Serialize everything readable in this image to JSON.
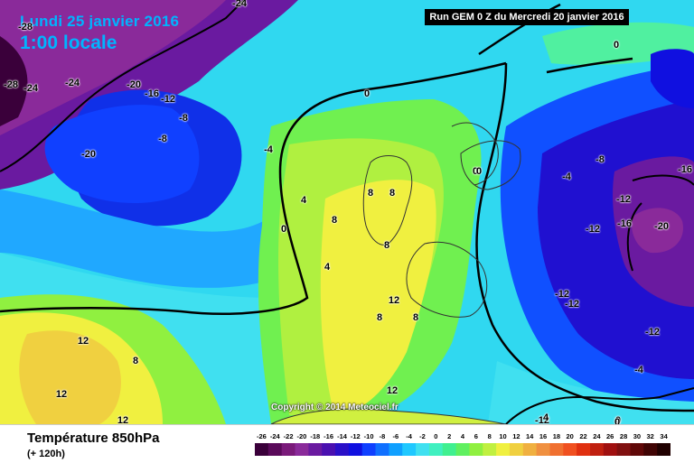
{
  "header": {
    "date": "Lundi 25 janvier 2016",
    "time": "1:00 locale",
    "run": "Run GEM 0 Z du Mercredi 20 janvier 2016"
  },
  "footer": {
    "title": "Température 850hPa",
    "subtitle": "(+ 120h)"
  },
  "copyright": "Copyright © 2014 Meteociel.fr",
  "legend": {
    "ticks": [
      "-26",
      "-24",
      "-22",
      "-20",
      "-18",
      "-16",
      "-14",
      "-12",
      "-10",
      "-8",
      "-6",
      "-4",
      "-2",
      "0",
      "2",
      "4",
      "6",
      "8",
      "10",
      "12",
      "14",
      "16",
      "18",
      "20",
      "22",
      "24",
      "26",
      "28",
      "30",
      "32",
      "34"
    ],
    "colors": [
      "#3a003a",
      "#5a0a5a",
      "#7a1a7a",
      "#8a2a9a",
      "#6a1aa0",
      "#4a10b0",
      "#2a10c8",
      "#1010e0",
      "#1040ff",
      "#1070ff",
      "#10a0ff",
      "#20c8ff",
      "#40e0f0",
      "#40f0c0",
      "#40f090",
      "#60f060",
      "#90f040",
      "#c0f040",
      "#f0f040",
      "#f0d040",
      "#f0b040",
      "#f09040",
      "#f07030",
      "#f05020",
      "#e03010",
      "#c02010",
      "#a01010",
      "#801010",
      "#600808",
      "#400404",
      "#200000"
    ]
  },
  "contours": [
    "-24",
    "-28",
    "-28",
    "-24",
    "-24",
    "-20",
    "-16",
    "-12",
    "-8",
    "-8",
    "-20",
    "-4",
    "0",
    "0",
    "0",
    "4",
    "8",
    "8",
    "8",
    "4",
    "8",
    "12",
    "8",
    "8",
    "12",
    "12",
    "8",
    "12",
    "12",
    "-12",
    "0",
    "0",
    "-4",
    "-8",
    "-16",
    "-12",
    "-16",
    "-12",
    "-20",
    "-12",
    "-12",
    "-12",
    "-4",
    "4",
    "0",
    "0"
  ]
}
